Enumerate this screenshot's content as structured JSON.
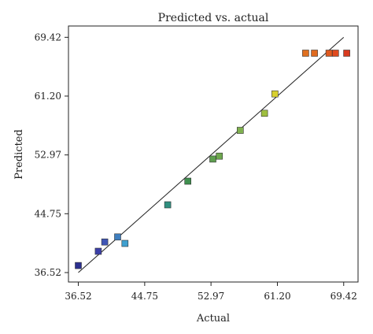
{
  "chart_data": {
    "type": "scatter",
    "title": "Predicted vs. actual",
    "xlabel": "Actual",
    "ylabel": "Predicted",
    "xlim": [
      35.3,
      71.2
    ],
    "ylim": [
      35.2,
      71.0
    ],
    "xticks": [
      "36.52",
      "44.75",
      "52.97",
      "61.20",
      "69.42"
    ],
    "yticks": [
      "36.52",
      "44.75",
      "52.97",
      "61.20",
      "69.42"
    ],
    "grid": false,
    "reference_line": {
      "x": [
        36.52,
        69.42
      ],
      "y": [
        36.52,
        69.42
      ]
    },
    "points": [
      {
        "x": 36.52,
        "y": 37.5,
        "color": "#2b2f8f"
      },
      {
        "x": 39.0,
        "y": 39.5,
        "color": "#3b3fa8"
      },
      {
        "x": 39.8,
        "y": 40.8,
        "color": "#3f55b5"
      },
      {
        "x": 41.4,
        "y": 41.5,
        "color": "#3f7fbf"
      },
      {
        "x": 42.3,
        "y": 40.6,
        "color": "#3fa0cf"
      },
      {
        "x": 47.6,
        "y": 46.0,
        "color": "#2f8f7f"
      },
      {
        "x": 50.1,
        "y": 49.3,
        "color": "#3f8f4f"
      },
      {
        "x": 53.2,
        "y": 52.4,
        "color": "#5f9f4f"
      },
      {
        "x": 54.0,
        "y": 52.8,
        "color": "#6fa84f"
      },
      {
        "x": 56.6,
        "y": 56.4,
        "color": "#7fb04f"
      },
      {
        "x": 59.6,
        "y": 58.8,
        "color": "#9fbf3f"
      },
      {
        "x": 60.9,
        "y": 61.5,
        "color": "#d8d030"
      },
      {
        "x": 64.7,
        "y": 67.2,
        "color": "#e07020"
      },
      {
        "x": 65.8,
        "y": 67.2,
        "color": "#e06a1f"
      },
      {
        "x": 67.6,
        "y": 67.2,
        "color": "#e05a1f"
      },
      {
        "x": 68.4,
        "y": 67.2,
        "color": "#e04a1f"
      },
      {
        "x": 69.8,
        "y": 67.2,
        "color": "#d83a1f"
      }
    ]
  }
}
